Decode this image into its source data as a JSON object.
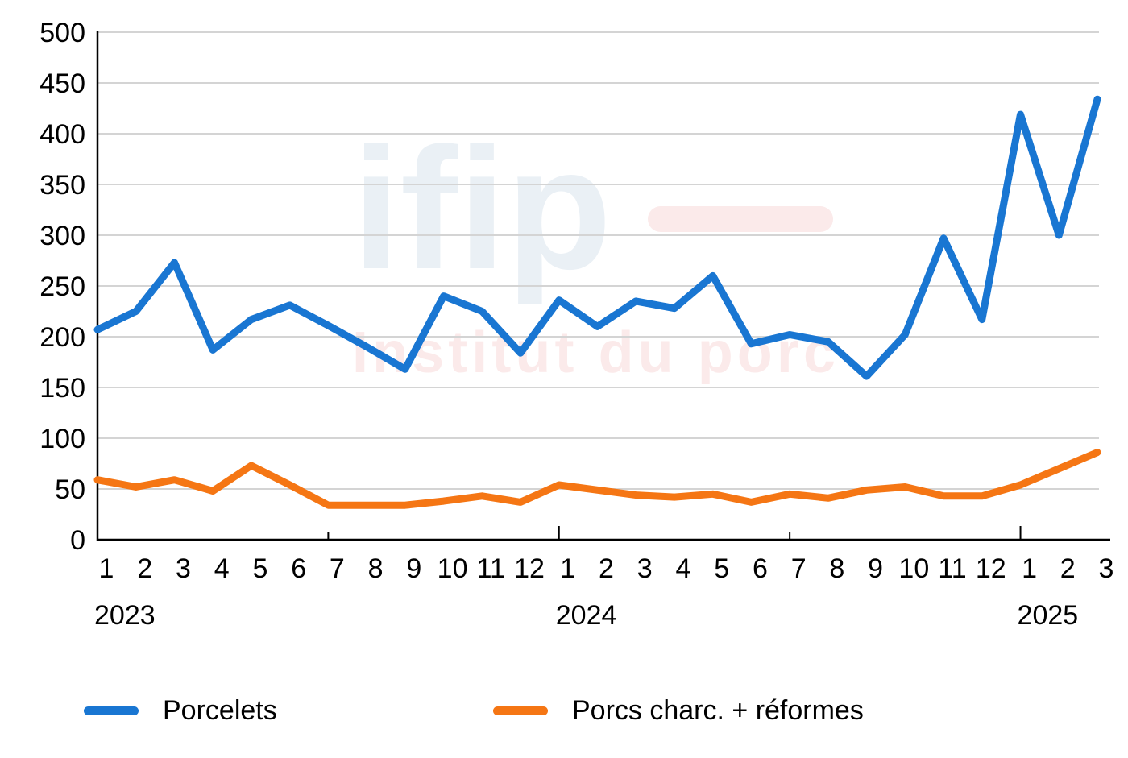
{
  "watermark": {
    "logo_text": "ifip",
    "subtitle": "Institut du porc",
    "logo_color": "#eaf0f5",
    "subtitle_color": "#fbeaea"
  },
  "legend": {
    "items": [
      {
        "label": "Porcelets",
        "color": "#1976d2"
      },
      {
        "label": "Porcs charc. + réformes",
        "color": "#f57614"
      }
    ]
  },
  "chart_data": {
    "type": "line",
    "title": "",
    "xlabel": "",
    "ylabel": "",
    "ylim": [
      0,
      500
    ],
    "yticks": [
      0,
      50,
      100,
      150,
      200,
      250,
      300,
      350,
      400,
      450,
      500
    ],
    "grid": true,
    "legend_position": "bottom",
    "x": [
      "1",
      "2",
      "3",
      "4",
      "5",
      "6",
      "7",
      "8",
      "9",
      "10",
      "11",
      "12",
      "1",
      "2",
      "3",
      "4",
      "5",
      "6",
      "7",
      "8",
      "9",
      "10",
      "11",
      "12",
      "1",
      "2",
      "3"
    ],
    "year_labels": [
      {
        "label": "2023",
        "index": 0
      },
      {
        "label": "2024",
        "index": 12
      },
      {
        "label": "2025",
        "index": 24
      }
    ],
    "major_tick_indices": [
      6,
      12,
      18,
      24
    ],
    "series": [
      {
        "name": "Porcelets",
        "color": "#1976d2",
        "values": [
          207,
          225,
          273,
          187,
          217,
          231,
          211,
          190,
          168,
          240,
          225,
          184,
          236,
          210,
          235,
          228,
          260,
          193,
          202,
          195,
          161,
          202,
          297,
          217,
          419,
          300,
          434
        ]
      },
      {
        "name": "Porcs charc. + réformes",
        "color": "#f57614",
        "values": [
          59,
          52,
          59,
          48,
          73,
          54,
          34,
          34,
          34,
          38,
          43,
          37,
          54,
          49,
          44,
          42,
          45,
          37,
          45,
          41,
          49,
          52,
          43,
          43,
          54,
          70,
          86
        ]
      }
    ]
  }
}
